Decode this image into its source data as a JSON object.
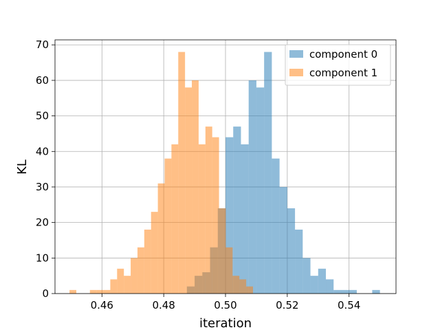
{
  "chart_data": {
    "type": "bar",
    "xlabel": "iteration",
    "ylabel": "KL",
    "xlim": [
      0.4448,
      0.5552
    ],
    "ylim": [
      0,
      71.4
    ],
    "xticks": [
      0.46,
      0.48,
      0.5,
      0.52,
      0.54
    ],
    "xtick_labels": [
      "0.46",
      "0.48",
      "0.50",
      "0.52",
      "0.54"
    ],
    "yticks": [
      0,
      10,
      20,
      30,
      40,
      50,
      60,
      70
    ],
    "ytick_labels": [
      "0",
      "10",
      "20",
      "30",
      "40",
      "50",
      "60",
      "70"
    ],
    "grid": true,
    "legend_position": "top-right",
    "series": [
      {
        "name": "component 0",
        "color": "#1f77b4",
        "alpha": 0.5,
        "bin_start": 0.4875,
        "bin_width": 0.0025,
        "counts": [
          2,
          5,
          6,
          13,
          24,
          44,
          47,
          42,
          60,
          58,
          68,
          38,
          30,
          24,
          18,
          10,
          5,
          7,
          4,
          1,
          1,
          1,
          0,
          0,
          1
        ]
      },
      {
        "name": "component 1",
        "color": "#ff7f0e",
        "alpha": 0.5,
        "bin_start": 0.4495,
        "bin_width": 0.0022,
        "counts": [
          1,
          0,
          0,
          1,
          1,
          1,
          4,
          7,
          5,
          10,
          13,
          18,
          23,
          31,
          38,
          42,
          68,
          58,
          60,
          42,
          47,
          44,
          24,
          13,
          5,
          4,
          2
        ]
      }
    ]
  }
}
